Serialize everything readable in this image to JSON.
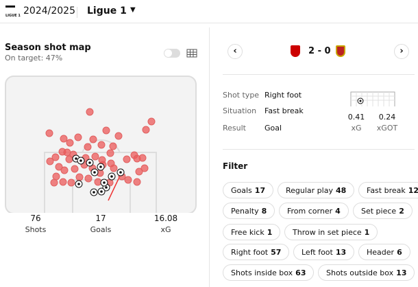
{
  "header": {
    "season": "2024/2025",
    "league": "Ligue 1",
    "league_logo": "LIGUE 1"
  },
  "shot_map": {
    "title": "Season shot map",
    "subtitle": "On target: 47%",
    "stats": [
      {
        "value": "76",
        "label": "Shots"
      },
      {
        "value": "17",
        "label": "Goals"
      },
      {
        "value": "16.08",
        "label": "xG"
      }
    ]
  },
  "match": {
    "score": "2 - 0"
  },
  "shot_detail": {
    "rows": [
      {
        "label": "Shot type",
        "value": "Right foot"
      },
      {
        "label": "Situation",
        "value": "Fast break"
      },
      {
        "label": "Result",
        "value": "Goal"
      }
    ],
    "metrics": [
      {
        "value": "0.41",
        "label": "xG"
      },
      {
        "value": "0.24",
        "label": "xGOT"
      }
    ]
  },
  "filter": {
    "title": "Filter",
    "chips": [
      {
        "label": "Goals",
        "count": "17"
      },
      {
        "label": "Regular play",
        "count": "48"
      },
      {
        "label": "Fast break",
        "count": "12"
      },
      {
        "label": "Penalty",
        "count": "8"
      },
      {
        "label": "From corner",
        "count": "4"
      },
      {
        "label": "Set piece",
        "count": "2"
      },
      {
        "label": "Free kick",
        "count": "1"
      },
      {
        "label": "Throw in set piece",
        "count": "1"
      },
      {
        "label": "Right foot",
        "count": "57"
      },
      {
        "label": "Left foot",
        "count": "13"
      },
      {
        "label": "Header",
        "count": "6"
      },
      {
        "label": "Shots inside box",
        "count": "63"
      },
      {
        "label": "Shots outside box",
        "count": "13"
      }
    ]
  }
}
